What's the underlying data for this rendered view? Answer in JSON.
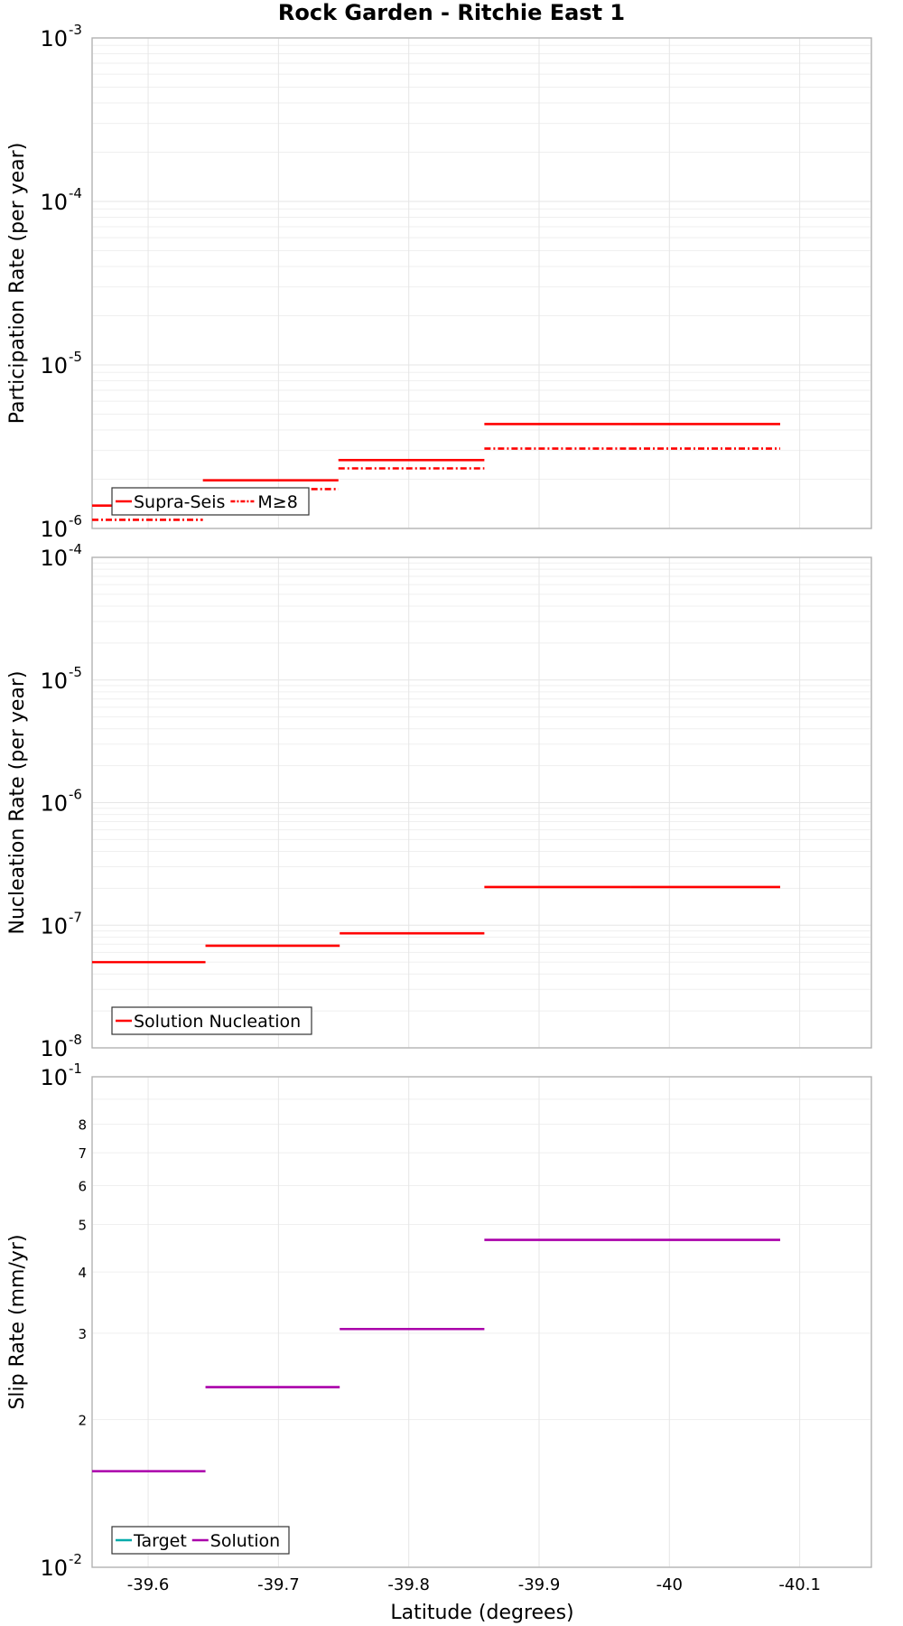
{
  "chart_data": {
    "type": "line",
    "title": "Rock Garden - Ritchie East 1",
    "xlabel": "Latitude (degrees)",
    "xlim": [
      -39.557,
      -40.155
    ],
    "xticks": [
      {
        "value": -39.6,
        "label": "-39.6"
      },
      {
        "value": -39.7,
        "label": "-39.7"
      },
      {
        "value": -39.8,
        "label": "-39.8"
      },
      {
        "value": -39.9,
        "label": "-39.9"
      },
      {
        "value": -40.0,
        "label": "-40"
      },
      {
        "value": -40.1,
        "label": "-40.1"
      }
    ],
    "panels": [
      {
        "id": "participation",
        "ylabel": "Participation Rate (per year)",
        "scale": "log",
        "ylim": [
          1e-06,
          0.001
        ],
        "ticks": [
          {
            "value": 1e-06,
            "base": "10",
            "exp": "-6"
          },
          {
            "value": 1e-05,
            "base": "10",
            "exp": "-5"
          },
          {
            "value": 0.0001,
            "base": "10",
            "exp": "-4"
          },
          {
            "value": 0.001,
            "base": "10",
            "exp": "-3"
          }
        ],
        "minor_ticks": [],
        "series": [
          {
            "name": "Supra-Seis",
            "color": "#ff0000",
            "style": "solid",
            "segments": [
              {
                "x0": -39.557,
                "x1": -39.642,
                "y": 1.38e-06
              },
              {
                "x0": -39.642,
                "x1": -39.746,
                "y": 1.97e-06
              },
              {
                "x0": -39.746,
                "x1": -39.858,
                "y": 2.62e-06
              },
              {
                "x0": -39.858,
                "x1": -39.97,
                "y": 4.35e-06
              },
              {
                "x0": -39.97,
                "x1": -40.085,
                "y": 4.35e-06
              }
            ]
          },
          {
            "name": "M≥8",
            "color": "#ff0000",
            "style": "dashdot",
            "segments": [
              {
                "x0": -39.557,
                "x1": -39.642,
                "y": 1.13e-06
              },
              {
                "x0": -39.642,
                "x1": -39.746,
                "y": 1.74e-06
              },
              {
                "x0": -39.746,
                "x1": -39.858,
                "y": 2.33e-06
              },
              {
                "x0": -39.858,
                "x1": -39.97,
                "y": 3.08e-06
              },
              {
                "x0": -39.97,
                "x1": -40.085,
                "y": 3.08e-06
              }
            ]
          }
        ],
        "legend": {
          "position": "bottom-left",
          "entries": [
            {
              "label": "Supra-Seis",
              "color": "#ff0000",
              "style": "solid"
            },
            {
              "label": "M≥8",
              "color": "#ff0000",
              "style": "dashdot"
            }
          ]
        }
      },
      {
        "id": "nucleation",
        "ylabel": "Nucleation Rate (per year)",
        "scale": "log",
        "ylim": [
          1e-08,
          0.0001
        ],
        "ticks": [
          {
            "value": 1e-08,
            "base": "10",
            "exp": "-8"
          },
          {
            "value": 1e-07,
            "base": "10",
            "exp": "-7"
          },
          {
            "value": 1e-06,
            "base": "10",
            "exp": "-6"
          },
          {
            "value": 1e-05,
            "base": "10",
            "exp": "-5"
          },
          {
            "value": 0.0001,
            "base": "10",
            "exp": "-4"
          }
        ],
        "minor_ticks": [],
        "series": [
          {
            "name": "Solution Nucleation",
            "color": "#ff0000",
            "style": "solid",
            "segments": [
              {
                "x0": -39.557,
                "x1": -39.644,
                "y": 5e-08
              },
              {
                "x0": -39.644,
                "x1": -39.747,
                "y": 6.8e-08
              },
              {
                "x0": -39.747,
                "x1": -39.858,
                "y": 8.6e-08
              },
              {
                "x0": -39.858,
                "x1": -39.97,
                "y": 2.05e-07
              },
              {
                "x0": -39.97,
                "x1": -40.085,
                "y": 2.05e-07
              }
            ]
          }
        ],
        "legend": {
          "position": "bottom-left",
          "entries": [
            {
              "label": "Solution Nucleation",
              "color": "#ff0000",
              "style": "solid"
            }
          ]
        }
      },
      {
        "id": "slip",
        "ylabel": "Slip Rate (mm/yr)",
        "scale": "log",
        "ylim": [
          0.01,
          0.1
        ],
        "ticks": [
          {
            "value": 0.01,
            "base": "10",
            "exp": "-2"
          },
          {
            "value": 0.1,
            "base": "10",
            "exp": "-1"
          }
        ],
        "minor_ticks": [
          {
            "value": 0.02,
            "label": "2"
          },
          {
            "value": 0.03,
            "label": "3"
          },
          {
            "value": 0.04,
            "label": "4"
          },
          {
            "value": 0.05,
            "label": "5"
          },
          {
            "value": 0.06,
            "label": "6"
          },
          {
            "value": 0.07,
            "label": "7"
          },
          {
            "value": 0.08,
            "label": "8"
          }
        ],
        "series": [
          {
            "name": "Target",
            "color": "#00aaaa",
            "style": "solid",
            "segments": []
          },
          {
            "name": "Solution",
            "color": "#aa00aa",
            "style": "solid",
            "segments": [
              {
                "x0": -39.557,
                "x1": -39.644,
                "y": 0.0157
              },
              {
                "x0": -39.644,
                "x1": -39.747,
                "y": 0.0233
              },
              {
                "x0": -39.747,
                "x1": -39.858,
                "y": 0.0306
              },
              {
                "x0": -39.858,
                "x1": -39.97,
                "y": 0.0465
              },
              {
                "x0": -39.97,
                "x1": -40.085,
                "y": 0.0465
              }
            ]
          }
        ],
        "legend": {
          "position": "bottom-left",
          "entries": [
            {
              "label": "Target",
              "color": "#00aaaa",
              "style": "solid"
            },
            {
              "label": "Solution",
              "color": "#aa00aa",
              "style": "solid"
            }
          ]
        }
      }
    ]
  }
}
